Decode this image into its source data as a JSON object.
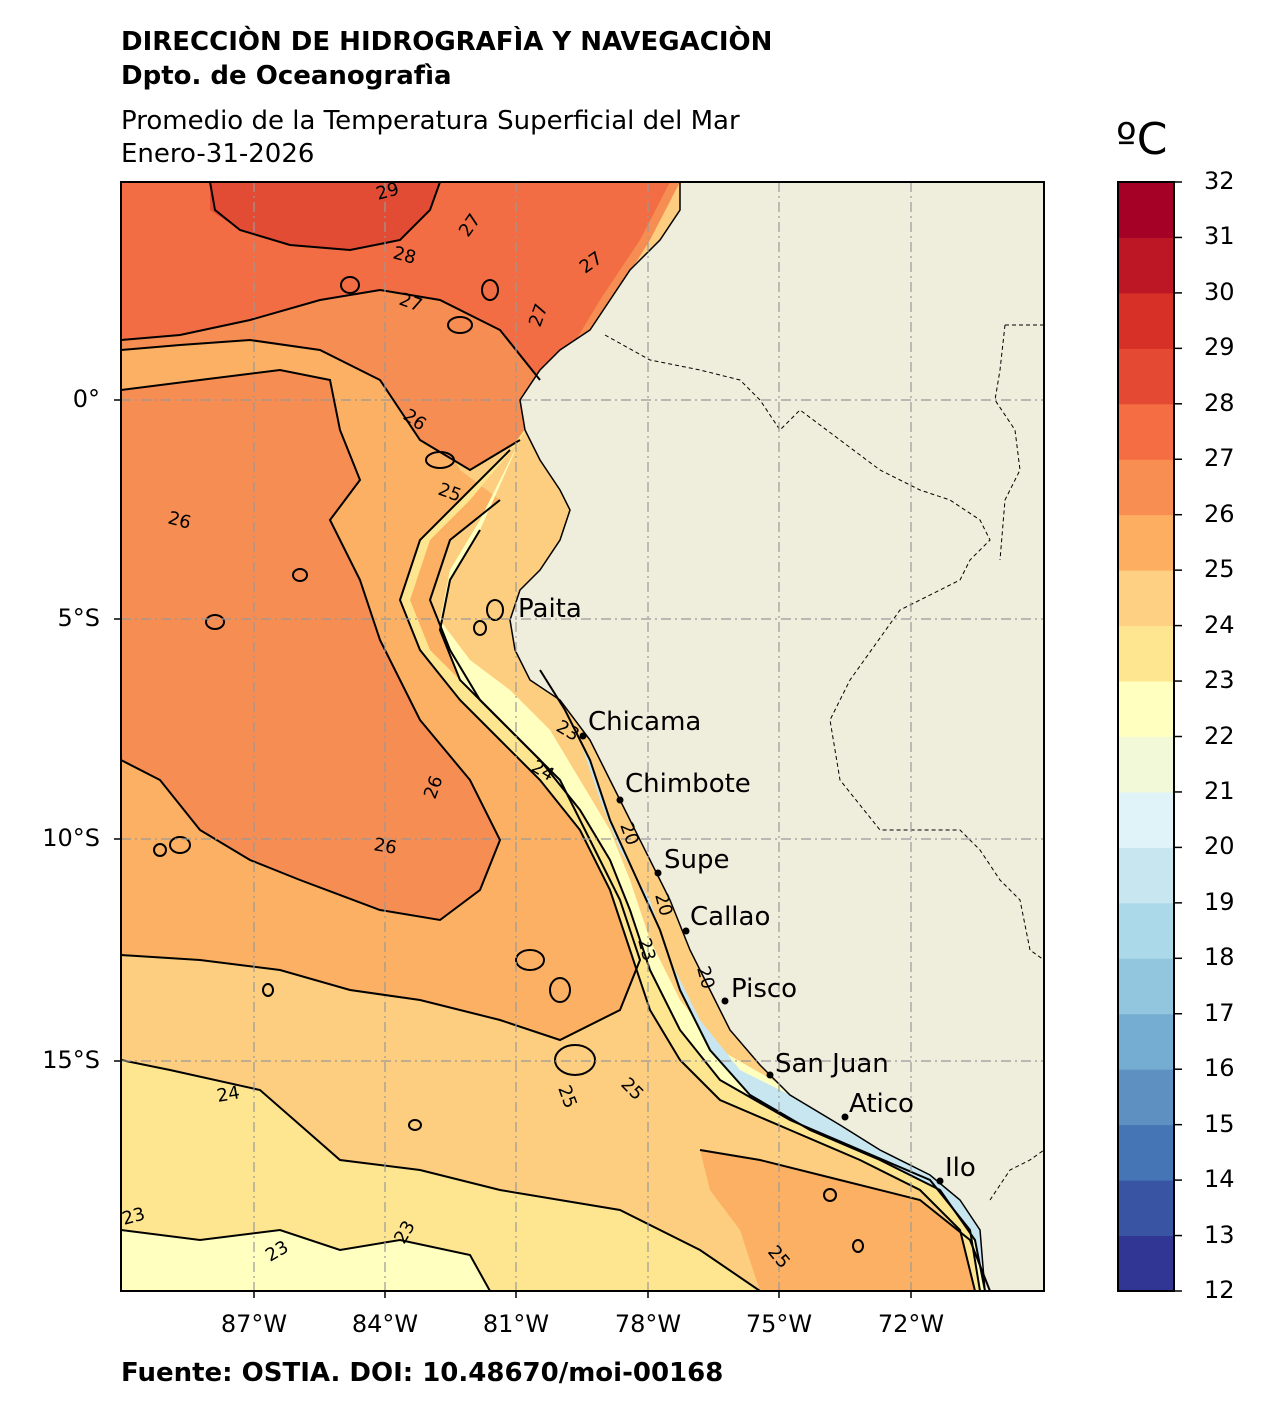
{
  "header": {
    "org": "DIRECCIÒN DE HIDROGRAFÌA Y NAVEGACIÒN",
    "dept": "Dpto. de Oceanografìa",
    "subtitle": "Promedio de la Temperatura Superficial del Mar",
    "date": "Enero-31-2026"
  },
  "source": "Fuente: OSTIA. DOI: 10.48670/moi-00168",
  "colorbar": {
    "unit": "ºC",
    "ticks": [
      "12",
      "13",
      "14",
      "15",
      "16",
      "17",
      "18",
      "19",
      "20",
      "21",
      "22",
      "23",
      "24",
      "25",
      "26",
      "27",
      "28",
      "29",
      "30",
      "31",
      "32"
    ],
    "colors": [
      "#313695",
      "#3a54a4",
      "#4575b4",
      "#5f90c2",
      "#74add1",
      "#92c5de",
      "#abd9e9",
      "#c8e6f0",
      "#e0f3f8",
      "#f1f9d9",
      "#ffffbf",
      "#fee690",
      "#fed083",
      "#fdae61",
      "#f98e52",
      "#f46d43",
      "#e34933",
      "#d73027",
      "#bd1726",
      "#a50026"
    ]
  },
  "axes": {
    "lat_labels": [
      "0°",
      "5°S",
      "10°S",
      "15°S"
    ],
    "lon_labels": [
      "87°W",
      "84°W",
      "81°W",
      "78°W",
      "75°W",
      "72°W"
    ]
  },
  "cities": [
    {
      "name": "Paita"
    },
    {
      "name": "Chicama"
    },
    {
      "name": "Chimbote"
    },
    {
      "name": "Supe"
    },
    {
      "name": "Callao"
    },
    {
      "name": "Pisco"
    },
    {
      "name": "San Juan"
    },
    {
      "name": "Atico"
    },
    {
      "name": "Ilo"
    }
  ],
  "contour_labels": [
    "29",
    "28",
    "27",
    "27",
    "27",
    "27",
    "26",
    "25",
    "26",
    "26",
    "26",
    "24",
    "23",
    "20",
    "20",
    "23",
    "20",
    "25",
    "25",
    "24",
    "23",
    "23",
    "23",
    "25"
  ],
  "colors": {
    "land": "#efeddb",
    "sea_24_25": "#fdce7f",
    "sea_25_26": "#fbb063",
    "sea_26_27": "#f68d53",
    "sea_27_28": "#f26d43",
    "sea_28_29": "#e24c34"
  }
}
